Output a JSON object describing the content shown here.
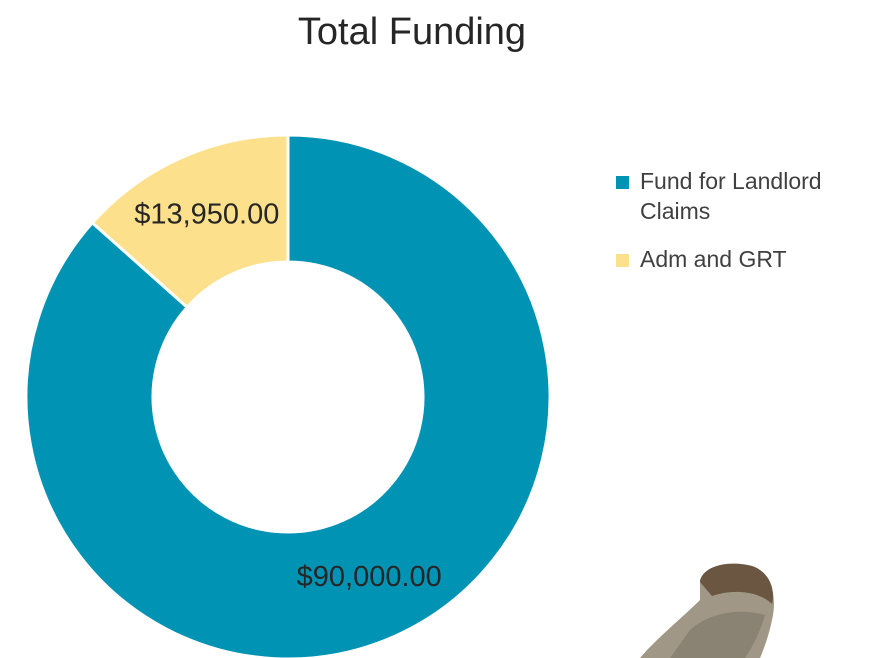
{
  "chart_data": {
    "type": "pie",
    "title": "Total Funding",
    "categories": [
      "Fund for Landlord Claims",
      "Adm and GRT"
    ],
    "values": [
      90000,
      13950
    ],
    "value_labels": [
      "$90,000.00",
      "$13,950.00"
    ],
    "colors": [
      "#0093b4",
      "#fde08b"
    ],
    "legend": "right"
  }
}
